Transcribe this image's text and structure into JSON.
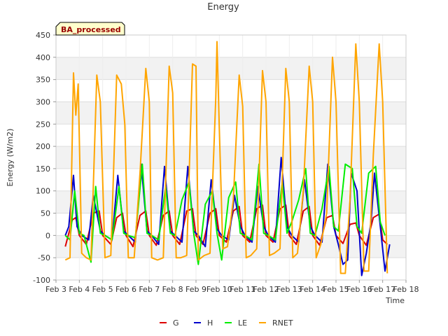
{
  "chart_data": {
    "type": "line",
    "title": "Energy",
    "xlabel": "Time",
    "ylabel": "Energy (W/m2)",
    "badge": "BA_processed",
    "xlim": [
      3,
      18
    ],
    "ylim": [
      -100,
      450
    ],
    "x_ticks": [
      {
        "value": 3,
        "label": "Feb 3"
      },
      {
        "value": 4,
        "label": "Feb 4"
      },
      {
        "value": 5,
        "label": "Feb 5"
      },
      {
        "value": 6,
        "label": "Feb 6"
      },
      {
        "value": 7,
        "label": "Feb 7"
      },
      {
        "value": 8,
        "label": "Feb 8"
      },
      {
        "value": 9,
        "label": "Feb 9"
      },
      {
        "value": 10,
        "label": "Feb 10"
      },
      {
        "value": 11,
        "label": "Feb 11"
      },
      {
        "value": 12,
        "label": "Feb 12"
      },
      {
        "value": 13,
        "label": "Feb 13"
      },
      {
        "value": 14,
        "label": "Feb 14"
      },
      {
        "value": 15,
        "label": "Feb 15"
      },
      {
        "value": 16,
        "label": "Feb 16"
      },
      {
        "value": 17,
        "label": "Feb 17"
      },
      {
        "value": 18,
        "label": "Feb 18"
      }
    ],
    "y_ticks": [
      -100,
      -50,
      0,
      50,
      100,
      150,
      200,
      250,
      300,
      350,
      400,
      450
    ],
    "grid": true,
    "legend_position": "bottom",
    "series": [
      {
        "name": "G",
        "color": "#dd0000",
        "x": [
          3.4,
          3.7,
          3.85,
          4.0,
          4.3,
          4.6,
          4.85,
          5.0,
          5.35,
          5.6,
          5.85,
          6.0,
          6.3,
          6.6,
          6.85,
          7.0,
          7.3,
          7.6,
          7.85,
          8.0,
          8.3,
          8.6,
          8.85,
          9.0,
          9.3,
          9.6,
          9.85,
          10.0,
          10.3,
          10.6,
          10.85,
          11.0,
          11.3,
          11.6,
          11.85,
          12.0,
          12.3,
          12.6,
          12.85,
          13.0,
          13.3,
          13.6,
          13.85,
          14.0,
          14.3,
          14.6,
          14.85,
          15.0,
          15.3,
          15.6,
          15.85,
          16.0,
          16.3,
          16.6,
          16.85,
          17.0,
          17.2
        ],
        "values": [
          -25,
          35,
          40,
          0,
          -20,
          50,
          55,
          0,
          -20,
          40,
          50,
          0,
          -25,
          45,
          55,
          0,
          -22,
          45,
          55,
          0,
          -20,
          55,
          60,
          0,
          -20,
          50,
          60,
          0,
          -15,
          55,
          65,
          0,
          -15,
          60,
          68,
          0,
          -15,
          60,
          68,
          0,
          -20,
          55,
          65,
          0,
          -22,
          40,
          45,
          0,
          -18,
          25,
          28,
          0,
          -22,
          40,
          48,
          -10,
          -20
        ]
      },
      {
        "name": "H",
        "color": "#0000cc",
        "x": [
          3.4,
          3.55,
          3.75,
          3.9,
          4.1,
          4.4,
          4.6,
          4.9,
          5.1,
          5.4,
          5.65,
          5.9,
          6.1,
          6.4,
          6.65,
          6.9,
          7.1,
          7.4,
          7.65,
          7.9,
          8.1,
          8.4,
          8.65,
          8.9,
          9.1,
          9.4,
          9.65,
          9.9,
          10.1,
          10.4,
          10.65,
          10.9,
          11.1,
          11.4,
          11.65,
          11.9,
          12.1,
          12.4,
          12.65,
          12.9,
          13.1,
          13.4,
          13.65,
          13.9,
          14.1,
          14.4,
          14.65,
          14.9,
          15.1,
          15.3,
          15.5,
          15.65,
          15.9,
          16.1,
          16.3,
          16.5,
          16.65,
          16.9,
          17.1,
          17.3
        ],
        "values": [
          0,
          20,
          135,
          20,
          0,
          -10,
          90,
          10,
          0,
          -10,
          135,
          10,
          0,
          -15,
          160,
          10,
          0,
          -20,
          155,
          10,
          0,
          -15,
          155,
          10,
          0,
          -25,
          125,
          15,
          0,
          -10,
          90,
          20,
          0,
          -15,
          110,
          20,
          0,
          -15,
          175,
          20,
          0,
          -15,
          125,
          20,
          0,
          -15,
          160,
          20,
          -20,
          -65,
          -55,
          140,
          100,
          -90,
          -40,
          30,
          140,
          20,
          -80,
          -20
        ]
      },
      {
        "name": "LE",
        "color": "#00ee00",
        "x": [
          3.4,
          3.6,
          3.8,
          4.0,
          4.2,
          4.5,
          4.7,
          4.9,
          5.1,
          5.4,
          5.7,
          5.9,
          6.1,
          6.4,
          6.7,
          6.9,
          7.1,
          7.4,
          7.7,
          7.9,
          8.1,
          8.4,
          8.7,
          8.9,
          9.1,
          9.4,
          9.7,
          9.9,
          10.1,
          10.4,
          10.7,
          10.9,
          11.1,
          11.4,
          11.7,
          11.9,
          12.1,
          12.4,
          12.7,
          12.9,
          13.1,
          13.4,
          13.7,
          13.9,
          14.1,
          14.4,
          14.7,
          14.9,
          15.1,
          15.4,
          15.7,
          15.9,
          16.1,
          16.4,
          16.7,
          16.9,
          17.1
        ],
        "values": [
          0,
          -10,
          100,
          5,
          0,
          -60,
          110,
          5,
          0,
          -10,
          110,
          5,
          0,
          -5,
          160,
          5,
          0,
          -10,
          110,
          5,
          0,
          80,
          120,
          5,
          -65,
          70,
          100,
          5,
          -55,
          85,
          120,
          5,
          0,
          -10,
          160,
          5,
          0,
          -10,
          120,
          5,
          30,
          80,
          150,
          5,
          0,
          60,
          155,
          20,
          10,
          160,
          150,
          20,
          5,
          140,
          155,
          30,
          0
        ]
      },
      {
        "name": "RNET",
        "color": "#ffa500",
        "x": [
          3.4,
          3.6,
          3.75,
          3.85,
          3.95,
          4.1,
          4.3,
          4.5,
          4.75,
          4.9,
          5.1,
          5.35,
          5.6,
          5.8,
          5.95,
          6.1,
          6.35,
          6.6,
          6.85,
          7.0,
          7.1,
          7.35,
          7.6,
          7.85,
          8.0,
          8.15,
          8.35,
          8.6,
          8.85,
          9.0,
          9.1,
          9.35,
          9.6,
          9.85,
          9.9,
          10.0,
          10.15,
          10.35,
          10.6,
          10.85,
          11.0,
          11.15,
          11.35,
          11.6,
          11.85,
          12.0,
          12.15,
          12.35,
          12.6,
          12.85,
          13.0,
          13.15,
          13.35,
          13.6,
          13.85,
          14.0,
          14.15,
          14.35,
          14.6,
          14.85,
          15.0,
          15.2,
          15.4,
          15.6,
          15.85,
          16.0,
          16.2,
          16.4,
          16.6,
          16.85,
          17.0,
          17.2
        ],
        "values": [
          -55,
          -50,
          365,
          270,
          340,
          -40,
          -50,
          -55,
          360,
          300,
          -50,
          -45,
          360,
          340,
          250,
          -50,
          -50,
          140,
          375,
          300,
          -50,
          -55,
          -50,
          380,
          320,
          -50,
          -50,
          -45,
          385,
          380,
          -55,
          -45,
          -40,
          310,
          435,
          240,
          -30,
          -25,
          80,
          360,
          290,
          -50,
          -45,
          -30,
          370,
          300,
          -45,
          -40,
          -30,
          375,
          300,
          -50,
          -40,
          100,
          380,
          300,
          -50,
          -20,
          50,
          400,
          300,
          -85,
          -85,
          80,
          430,
          300,
          -80,
          -80,
          180,
          430,
          300,
          -85
        ]
      }
    ]
  }
}
